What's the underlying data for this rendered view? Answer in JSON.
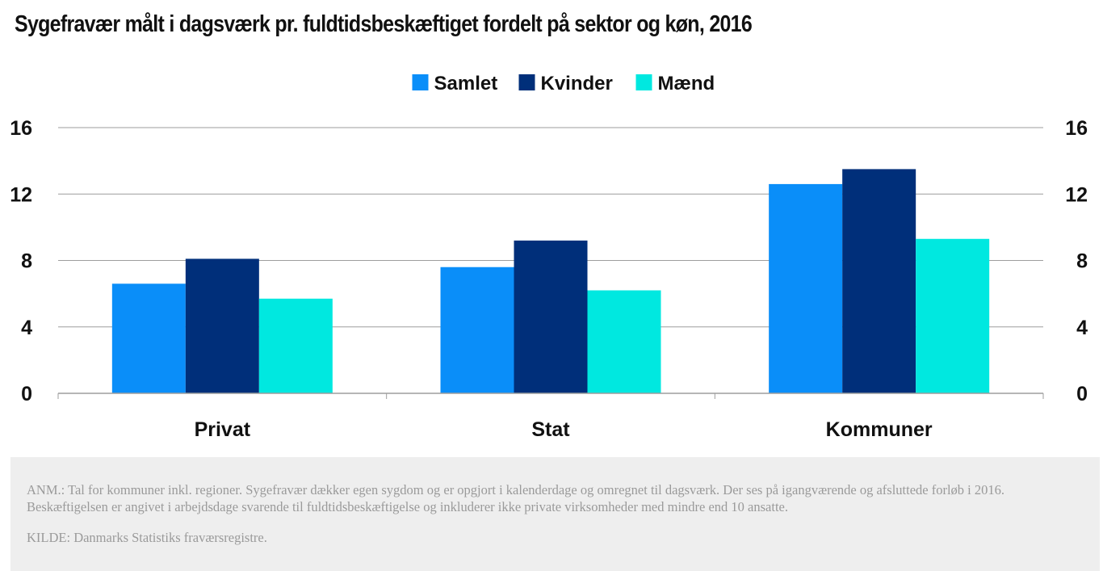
{
  "title": "Sygefravær målt i dagsværk pr. fuldtidsbeskæftiget fordelt på sektor og køn, 2016",
  "note": "ANM.: Tal for kommuner inkl. regioner. Sygefravær dækker egen sygdom og er opgjort i kalenderdage og omregnet til dagsværk. Der ses på igangværende og afsluttede forløb i 2016. Beskæftigelsen er angivet i arbejdsdage svarende til fuldtidsbeskæftigelse og inkluderer ikke private virksomheder med mindre end 10 ansatte.",
  "source": "KILDE: Danmarks Statistiks fraværsregistre.",
  "chart_data": {
    "type": "bar",
    "title": "Sygefravær målt i dagsværk pr. fuldtidsbeskæftiget fordelt på sektor og køn, 2016",
    "categories": [
      "Privat",
      "Stat",
      "Kommuner"
    ],
    "series": [
      {
        "name": "Samlet",
        "color": "#0a8ef9",
        "values": [
          6.6,
          7.6,
          12.6
        ]
      },
      {
        "name": "Kvinder",
        "color": "#002f7a",
        "values": [
          8.1,
          9.2,
          13.5
        ]
      },
      {
        "name": "Mænd",
        "color": "#00e8e0",
        "values": [
          5.7,
          6.2,
          9.3
        ]
      }
    ],
    "yticks": [
      0,
      4,
      8,
      12,
      16
    ],
    "ylim": [
      0,
      16
    ],
    "grid": true,
    "legend": "top-center",
    "right_axis": true
  }
}
